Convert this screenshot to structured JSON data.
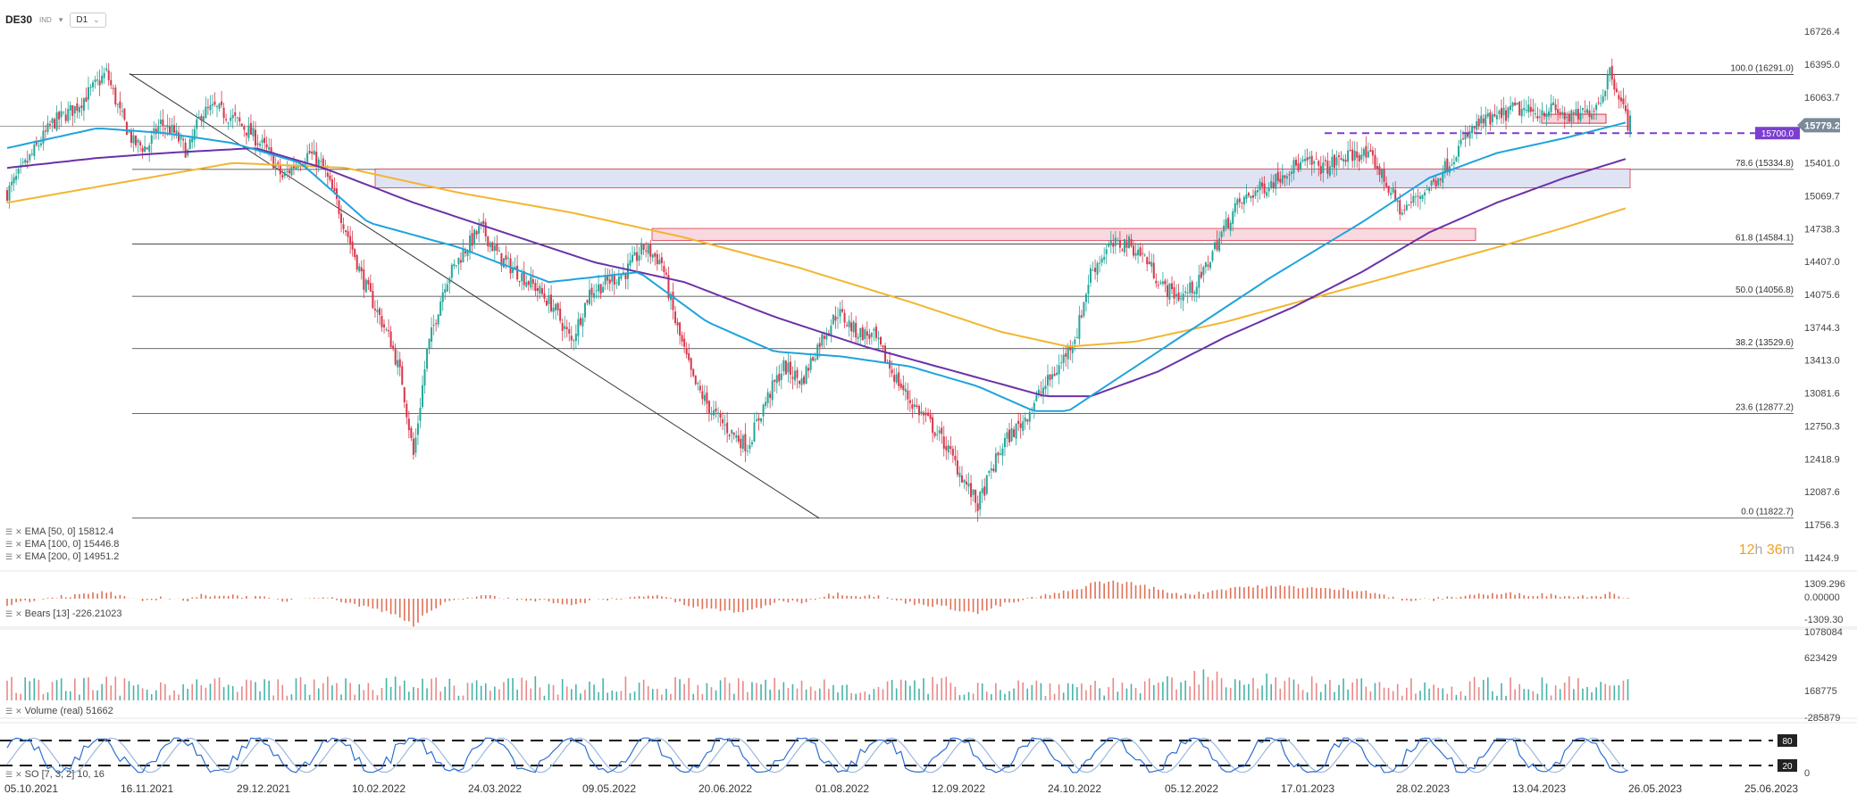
{
  "toolbar": {
    "symbol": "DE30",
    "market": "IND",
    "timeframe": "D1"
  },
  "chart_data": {
    "type": "candlestick",
    "title": "DE30",
    "x_dates": [
      "05.10.2021",
      "16.11.2021",
      "29.12.2021",
      "10.02.2022",
      "24.03.2022",
      "09.05.2022",
      "20.06.2022",
      "01.08.2022",
      "12.09.2022",
      "24.10.2022",
      "05.12.2022",
      "17.01.2023",
      "28.02.2023",
      "13.04.2023",
      "26.05.2023",
      "25.06.2023"
    ],
    "price_axis": [
      "16726.4",
      "16395.0",
      "16063.7",
      "15401.0",
      "15069.7",
      "14738.3",
      "14407.0",
      "14075.6",
      "13744.3",
      "13413.0",
      "13081.6",
      "12750.3",
      "12418.9",
      "12087.6",
      "11756.3",
      "11424.9"
    ],
    "ylim": [
      11424.9,
      16726.4
    ],
    "current_price": "15779.2",
    "level_label": "15700.0",
    "fib_levels": [
      {
        "label": "100.0 (16291.0)",
        "value": 16291.0
      },
      {
        "label": "78.6 (15334.8)",
        "value": 15334.8
      },
      {
        "label": "61.8 (14584.1)",
        "value": 14584.1
      },
      {
        "label": "50.0 (14056.8)",
        "value": 14056.8
      },
      {
        "label": "38.2 (13529.6)",
        "value": 13529.6
      },
      {
        "label": "23.6 (12877.2)",
        "value": 12877.2
      },
      {
        "label": "0.0 (11822.7)",
        "value": 11822.7
      }
    ],
    "close_path": [
      [
        0,
        15100
      ],
      [
        10,
        15450
      ],
      [
        20,
        15800
      ],
      [
        30,
        15950
      ],
      [
        38,
        16150
      ],
      [
        44,
        16310
      ],
      [
        50,
        15900
      ],
      [
        56,
        15600
      ],
      [
        62,
        15550
      ],
      [
        68,
        15800
      ],
      [
        74,
        15700
      ],
      [
        80,
        15500
      ],
      [
        86,
        15900
      ],
      [
        92,
        15950
      ],
      [
        100,
        15850
      ],
      [
        108,
        15700
      ],
      [
        116,
        15500
      ],
      [
        122,
        15250
      ],
      [
        128,
        15400
      ],
      [
        134,
        15500
      ],
      [
        140,
        15350
      ],
      [
        146,
        15000
      ],
      [
        152,
        14600
      ],
      [
        158,
        14200
      ],
      [
        164,
        13900
      ],
      [
        170,
        13600
      ],
      [
        175,
        13200
      ],
      [
        180,
        12450
      ],
      [
        186,
        13500
      ],
      [
        194,
        14200
      ],
      [
        202,
        14500
      ],
      [
        210,
        14750
      ],
      [
        218,
        14450
      ],
      [
        226,
        14300
      ],
      [
        234,
        14150
      ],
      [
        242,
        13950
      ],
      [
        250,
        13600
      ],
      [
        258,
        14100
      ],
      [
        266,
        14200
      ],
      [
        274,
        14300
      ],
      [
        282,
        14550
      ],
      [
        290,
        14400
      ],
      [
        296,
        13800
      ],
      [
        304,
        13200
      ],
      [
        312,
        12900
      ],
      [
        320,
        12700
      ],
      [
        328,
        12550
      ],
      [
        336,
        13000
      ],
      [
        344,
        13350
      ],
      [
        352,
        13200
      ],
      [
        360,
        13600
      ],
      [
        368,
        13900
      ],
      [
        376,
        13700
      ],
      [
        384,
        13650
      ],
      [
        392,
        13300
      ],
      [
        400,
        13000
      ],
      [
        408,
        12800
      ],
      [
        416,
        12550
      ],
      [
        424,
        12200
      ],
      [
        430,
        11950
      ],
      [
        436,
        12300
      ],
      [
        442,
        12600
      ],
      [
        450,
        12800
      ],
      [
        458,
        13100
      ],
      [
        466,
        13350
      ],
      [
        474,
        13700
      ],
      [
        480,
        14300
      ],
      [
        488,
        14550
      ],
      [
        496,
        14600
      ],
      [
        504,
        14450
      ],
      [
        512,
        14150
      ],
      [
        520,
        14050
      ],
      [
        528,
        14200
      ],
      [
        536,
        14600
      ],
      [
        544,
        14950
      ],
      [
        552,
        15100
      ],
      [
        560,
        15200
      ],
      [
        568,
        15350
      ],
      [
        576,
        15400
      ],
      [
        584,
        15350
      ],
      [
        592,
        15450
      ],
      [
        600,
        15500
      ],
      [
        606,
        15400
      ],
      [
        612,
        15150
      ],
      [
        618,
        14900
      ],
      [
        624,
        15050
      ],
      [
        632,
        15200
      ],
      [
        640,
        15450
      ],
      [
        646,
        15650
      ],
      [
        652,
        15800
      ],
      [
        660,
        15850
      ],
      [
        668,
        15950
      ],
      [
        676,
        15900
      ],
      [
        684,
        15950
      ],
      [
        692,
        15850
      ],
      [
        700,
        15900
      ],
      [
        706,
        16050
      ],
      [
        710,
        16330
      ],
      [
        714,
        16100
      ],
      [
        718,
        15800
      ]
    ],
    "ema50_path": [
      [
        0,
        15550
      ],
      [
        40,
        15750
      ],
      [
        70,
        15700
      ],
      [
        100,
        15600
      ],
      [
        130,
        15400
      ],
      [
        160,
        14800
      ],
      [
        200,
        14550
      ],
      [
        240,
        14200
      ],
      [
        280,
        14300
      ],
      [
        310,
        13800
      ],
      [
        340,
        13500
      ],
      [
        370,
        13450
      ],
      [
        400,
        13350
      ],
      [
        430,
        13150
      ],
      [
        455,
        12900
      ],
      [
        470,
        12900
      ],
      [
        500,
        13350
      ],
      [
        530,
        13800
      ],
      [
        560,
        14250
      ],
      [
        600,
        14800
      ],
      [
        630,
        15250
      ],
      [
        660,
        15500
      ],
      [
        690,
        15650
      ],
      [
        718,
        15812
      ]
    ],
    "ema100_path": [
      [
        0,
        15350
      ],
      [
        40,
        15450
      ],
      [
        70,
        15500
      ],
      [
        110,
        15550
      ],
      [
        140,
        15350
      ],
      [
        180,
        15000
      ],
      [
        220,
        14700
      ],
      [
        260,
        14400
      ],
      [
        300,
        14200
      ],
      [
        340,
        13850
      ],
      [
        380,
        13550
      ],
      [
        420,
        13300
      ],
      [
        460,
        13050
      ],
      [
        480,
        13050
      ],
      [
        510,
        13300
      ],
      [
        540,
        13650
      ],
      [
        570,
        13950
      ],
      [
        600,
        14300
      ],
      [
        630,
        14700
      ],
      [
        660,
        15000
      ],
      [
        690,
        15250
      ],
      [
        718,
        15447
      ]
    ],
    "ema200_path": [
      [
        0,
        15000
      ],
      [
        50,
        15200
      ],
      [
        100,
        15400
      ],
      [
        150,
        15350
      ],
      [
        200,
        15100
      ],
      [
        250,
        14900
      ],
      [
        300,
        14650
      ],
      [
        350,
        14350
      ],
      [
        400,
        14000
      ],
      [
        440,
        13700
      ],
      [
        470,
        13550
      ],
      [
        500,
        13600
      ],
      [
        540,
        13800
      ],
      [
        580,
        14050
      ],
      [
        620,
        14300
      ],
      [
        660,
        14550
      ],
      [
        690,
        14750
      ],
      [
        718,
        14951
      ]
    ]
  },
  "legend": {
    "ema50": "EMA  [50, 0]  15812.4",
    "ema100": "EMA  [100, 0]  15446.8",
    "ema200": "EMA  [200, 0]  14951.2",
    "bears": "Bears  [13]  -226.21023",
    "volume": "Volume  (real)  51662",
    "so": "SO  [7, 3, 2]  10, 16"
  },
  "bears_axis": [
    "1309.296",
    "0.00000",
    "-1309.30"
  ],
  "volume_axis": [
    "1078084",
    "623429",
    "168775",
    "-285879"
  ],
  "so_axis": [
    "80",
    "20",
    "0"
  ],
  "timer": {
    "h": "12",
    "h_label": "h",
    "m": "36",
    "m_label": "m"
  },
  "colors": {
    "up": "#26a69a",
    "down": "#d9364a",
    "ema50": "#1ea4dc",
    "ema100": "#6a32a8",
    "ema200": "#f3b52f",
    "level": "#7b3fd0",
    "bears": "#e07055"
  }
}
